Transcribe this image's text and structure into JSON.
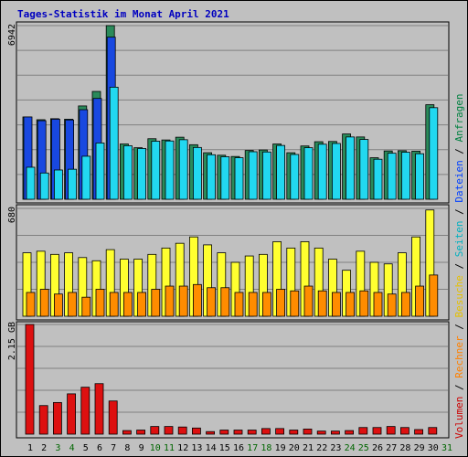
{
  "title": "Tages-Statistik im Monat April 2021",
  "legend_parts": [
    {
      "text": "Volumen",
      "color": "#cc0000"
    },
    {
      "text": " / ",
      "color": "#000000"
    },
    {
      "text": "Rechner",
      "color": "#ff8000"
    },
    {
      "text": " / ",
      "color": "#000000"
    },
    {
      "text": "Besuche",
      "color": "#e6c000"
    },
    {
      "text": " / ",
      "color": "#000000"
    },
    {
      "text": "Seiten",
      "color": "#00b0c0"
    },
    {
      "text": " / ",
      "color": "#000000"
    },
    {
      "text": "Dateien",
      "color": "#0040ff"
    },
    {
      "text": " / ",
      "color": "#000000"
    },
    {
      "text": "Anfragen",
      "color": "#008040"
    }
  ],
  "colors": {
    "anfragen": "#2a8a5a",
    "dateien": "#1848e0",
    "seiten": "#22d8f0",
    "besuche": "#ffff30",
    "rechner": "#ff8c00",
    "volumen": "#dd1010",
    "weekend_day_label": "#006600",
    "weekday_label": "#000000",
    "plot_bg": "#c0c0c0"
  },
  "chart_data": [
    {
      "type": "bar",
      "panel": "top",
      "ymax_label": "6942",
      "ylim": [
        0,
        6942
      ],
      "categories": [
        "1",
        "2",
        "3",
        "4",
        "5",
        "6",
        "7",
        "8",
        "9",
        "10",
        "11",
        "12",
        "13",
        "14",
        "15",
        "16",
        "17",
        "18",
        "19",
        "20",
        "21",
        "22",
        "23",
        "24",
        "25",
        "26",
        "27",
        "28",
        "29",
        "30",
        "31"
      ],
      "series": [
        {
          "name": "Anfragen",
          "values": [
            3290,
            3180,
            3220,
            3200,
            3730,
            4310,
            6942,
            2210,
            2060,
            2420,
            2370,
            2480,
            2180,
            1860,
            1760,
            1710,
            1950,
            1970,
            2210,
            1860,
            2130,
            2300,
            2310,
            2610,
            2490,
            1660,
            1930,
            1940,
            1920,
            3780,
            0
          ]
        },
        {
          "name": "Dateien",
          "values": [
            3290,
            3140,
            3200,
            3170,
            3580,
            4030,
            6480,
            0,
            0,
            0,
            0,
            0,
            0,
            0,
            0,
            0,
            0,
            0,
            0,
            0,
            0,
            0,
            0,
            0,
            0,
            0,
            0,
            0,
            0,
            0,
            0
          ]
        },
        {
          "name": "Seiten",
          "values": [
            1280,
            1050,
            1170,
            1200,
            1720,
            2250,
            4480,
            2140,
            2030,
            2320,
            2330,
            2380,
            2070,
            1780,
            1700,
            1660,
            1900,
            1890,
            2150,
            1790,
            2060,
            2200,
            2230,
            2490,
            2390,
            1600,
            1840,
            1880,
            1820,
            3660,
            0
          ]
        }
      ]
    },
    {
      "type": "bar",
      "panel": "middle",
      "ymax_label": "680",
      "ylim": [
        0,
        680
      ],
      "categories": [
        "1",
        "2",
        "3",
        "4",
        "5",
        "6",
        "7",
        "8",
        "9",
        "10",
        "11",
        "12",
        "13",
        "14",
        "15",
        "16",
        "17",
        "18",
        "19",
        "20",
        "21",
        "22",
        "23",
        "24",
        "25",
        "26",
        "27",
        "28",
        "29",
        "30",
        "31"
      ],
      "series": [
        {
          "name": "Besuche",
          "values": [
            400,
            410,
            390,
            400,
            370,
            350,
            420,
            360,
            360,
            390,
            430,
            460,
            500,
            450,
            400,
            340,
            380,
            390,
            470,
            430,
            470,
            430,
            360,
            290,
            410,
            340,
            330,
            400,
            500,
            670,
            0
          ]
        },
        {
          "name": "Rechner",
          "values": [
            150,
            170,
            140,
            150,
            120,
            170,
            150,
            150,
            150,
            170,
            190,
            190,
            200,
            180,
            180,
            150,
            150,
            150,
            170,
            160,
            190,
            160,
            150,
            150,
            160,
            150,
            140,
            150,
            190,
            260,
            0
          ]
        }
      ]
    },
    {
      "type": "bar",
      "panel": "bottom",
      "ymax_label": "2.15 GB",
      "ylim": [
        0,
        2.15
      ],
      "categories": [
        "1",
        "2",
        "3",
        "4",
        "5",
        "6",
        "7",
        "8",
        "9",
        "10",
        "11",
        "12",
        "13",
        "14",
        "15",
        "16",
        "17",
        "18",
        "19",
        "20",
        "21",
        "22",
        "23",
        "24",
        "25",
        "26",
        "27",
        "28",
        "29",
        "30",
        "31"
      ],
      "series": [
        {
          "name": "Volumen",
          "values": [
            2.15,
            0.56,
            0.62,
            0.79,
            0.92,
            0.99,
            0.65,
            0.07,
            0.08,
            0.15,
            0.15,
            0.14,
            0.12,
            0.05,
            0.08,
            0.08,
            0.08,
            0.11,
            0.11,
            0.08,
            0.1,
            0.06,
            0.06,
            0.07,
            0.13,
            0.13,
            0.15,
            0.13,
            0.09,
            0.13,
            0
          ]
        }
      ]
    }
  ],
  "x_labels": [
    {
      "text": "1",
      "weekend": false
    },
    {
      "text": "2",
      "weekend": false
    },
    {
      "text": "3",
      "weekend": true
    },
    {
      "text": "4",
      "weekend": true
    },
    {
      "text": "5",
      "weekend": false
    },
    {
      "text": "6",
      "weekend": false
    },
    {
      "text": "7",
      "weekend": false
    },
    {
      "text": "8",
      "weekend": false
    },
    {
      "text": "9",
      "weekend": false
    },
    {
      "text": "10",
      "weekend": true
    },
    {
      "text": "11",
      "weekend": true
    },
    {
      "text": "12",
      "weekend": false
    },
    {
      "text": "13",
      "weekend": false
    },
    {
      "text": "14",
      "weekend": false
    },
    {
      "text": "15",
      "weekend": false
    },
    {
      "text": "16",
      "weekend": false
    },
    {
      "text": "17",
      "weekend": true
    },
    {
      "text": "18",
      "weekend": true
    },
    {
      "text": "19",
      "weekend": false
    },
    {
      "text": "20",
      "weekend": false
    },
    {
      "text": "21",
      "weekend": false
    },
    {
      "text": "22",
      "weekend": false
    },
    {
      "text": "23",
      "weekend": false
    },
    {
      "text": "24",
      "weekend": true
    },
    {
      "text": "25",
      "weekend": true
    },
    {
      "text": "26",
      "weekend": false
    },
    {
      "text": "27",
      "weekend": false
    },
    {
      "text": "28",
      "weekend": false
    },
    {
      "text": "29",
      "weekend": false
    },
    {
      "text": "30",
      "weekend": false
    },
    {
      "text": "31",
      "weekend": true
    }
  ]
}
